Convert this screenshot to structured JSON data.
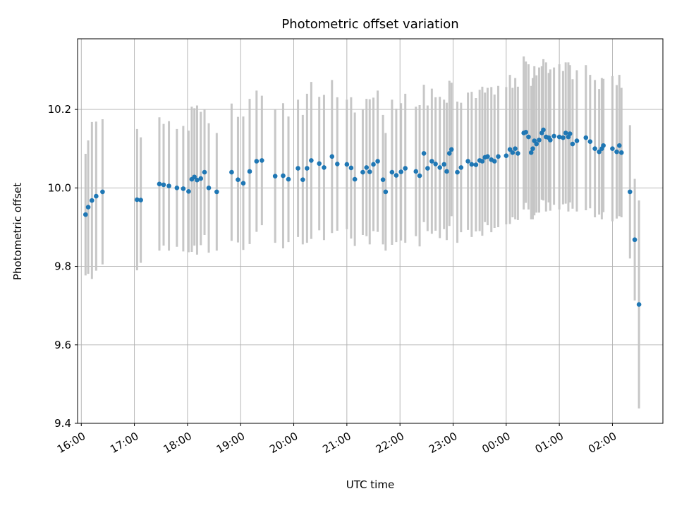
{
  "chart_data": {
    "type": "scatter",
    "title": "Photometric offset variation",
    "xlabel": "UTC time",
    "ylabel": "Photometric offset",
    "xlim": [
      15.93,
      26.95
    ],
    "ylim": [
      9.4,
      10.38
    ],
    "grid": true,
    "legend": false,
    "point_color": "#1f77b4",
    "errorbar_color": "#c4c4c4",
    "grid_color": "#b0b0b0",
    "spine_color": "#000000",
    "x_ticks": [
      {
        "value": 16,
        "label": "16:00"
      },
      {
        "value": 17,
        "label": "17:00"
      },
      {
        "value": 18,
        "label": "18:00"
      },
      {
        "value": 19,
        "label": "19:00"
      },
      {
        "value": 20,
        "label": "20:00"
      },
      {
        "value": 21,
        "label": "21:00"
      },
      {
        "value": 22,
        "label": "22:00"
      },
      {
        "value": 23,
        "label": "23:00"
      },
      {
        "value": 24,
        "label": "00:00"
      },
      {
        "value": 25,
        "label": "01:00"
      },
      {
        "value": 26,
        "label": "02:00"
      }
    ],
    "y_ticks": [
      {
        "value": 9.4,
        "label": "9.4"
      },
      {
        "value": 9.6,
        "label": "9.6"
      },
      {
        "value": 9.8,
        "label": "9.8"
      },
      {
        "value": 10.0,
        "label": "10.0"
      },
      {
        "value": 10.2,
        "label": "10.2"
      }
    ],
    "points_note": "each point is [utc_decimal_hours (24+ = next day), photometric_offset, symmetric_error]",
    "points": [
      [
        16.08,
        9.932,
        0.155
      ],
      [
        16.13,
        9.951,
        0.17
      ],
      [
        16.2,
        9.968,
        0.2
      ],
      [
        16.28,
        9.979,
        0.19
      ],
      [
        16.4,
        9.99,
        0.185
      ],
      [
        17.05,
        9.97,
        0.18
      ],
      [
        17.12,
        9.969,
        0.16
      ],
      [
        17.47,
        10.01,
        0.17
      ],
      [
        17.55,
        10.008,
        0.155
      ],
      [
        17.65,
        10.005,
        0.165
      ],
      [
        17.8,
        10.0,
        0.15
      ],
      [
        17.92,
        9.998,
        0.16
      ],
      [
        18.02,
        9.991,
        0.155
      ],
      [
        18.08,
        10.022,
        0.185
      ],
      [
        18.13,
        10.028,
        0.175
      ],
      [
        18.18,
        10.02,
        0.19
      ],
      [
        18.25,
        10.024,
        0.17
      ],
      [
        18.32,
        10.04,
        0.16
      ],
      [
        18.4,
        10.0,
        0.165
      ],
      [
        18.55,
        9.99,
        0.15
      ],
      [
        18.83,
        10.04,
        0.175
      ],
      [
        18.95,
        10.021,
        0.16
      ],
      [
        19.05,
        10.012,
        0.17
      ],
      [
        19.17,
        10.042,
        0.185
      ],
      [
        19.3,
        10.068,
        0.18
      ],
      [
        19.4,
        10.07,
        0.165
      ],
      [
        19.65,
        10.03,
        0.17
      ],
      [
        19.8,
        10.031,
        0.185
      ],
      [
        19.9,
        10.022,
        0.16
      ],
      [
        20.08,
        10.05,
        0.175
      ],
      [
        20.17,
        10.021,
        0.165
      ],
      [
        20.25,
        10.05,
        0.19
      ],
      [
        20.33,
        10.07,
        0.2
      ],
      [
        20.48,
        10.062,
        0.17
      ],
      [
        20.57,
        10.052,
        0.185
      ],
      [
        20.72,
        10.08,
        0.195
      ],
      [
        20.82,
        10.061,
        0.17
      ],
      [
        21.0,
        10.06,
        0.165
      ],
      [
        21.08,
        10.051,
        0.18
      ],
      [
        21.15,
        10.022,
        0.17
      ],
      [
        21.3,
        10.04,
        0.16
      ],
      [
        21.37,
        10.052,
        0.175
      ],
      [
        21.43,
        10.041,
        0.185
      ],
      [
        21.5,
        10.06,
        0.17
      ],
      [
        21.58,
        10.068,
        0.18
      ],
      [
        21.68,
        10.021,
        0.165
      ],
      [
        21.73,
        9.99,
        0.15
      ],
      [
        21.85,
        10.04,
        0.185
      ],
      [
        21.93,
        10.032,
        0.17
      ],
      [
        22.02,
        10.041,
        0.175
      ],
      [
        22.1,
        10.05,
        0.19
      ],
      [
        22.3,
        10.042,
        0.165
      ],
      [
        22.37,
        10.031,
        0.18
      ],
      [
        22.45,
        10.088,
        0.175
      ],
      [
        22.52,
        10.05,
        0.16
      ],
      [
        22.6,
        10.068,
        0.185
      ],
      [
        22.67,
        10.061,
        0.17
      ],
      [
        22.75,
        10.052,
        0.18
      ],
      [
        22.83,
        10.06,
        0.165
      ],
      [
        22.88,
        10.042,
        0.175
      ],
      [
        22.93,
        10.088,
        0.185
      ],
      [
        22.97,
        10.098,
        0.17
      ],
      [
        23.08,
        10.04,
        0.18
      ],
      [
        23.15,
        10.052,
        0.165
      ],
      [
        23.28,
        10.068,
        0.175
      ],
      [
        23.35,
        10.06,
        0.185
      ],
      [
        23.43,
        10.059,
        0.17
      ],
      [
        23.5,
        10.07,
        0.18
      ],
      [
        23.55,
        10.068,
        0.19
      ],
      [
        23.6,
        10.078,
        0.165
      ],
      [
        23.65,
        10.08,
        0.175
      ],
      [
        23.72,
        10.072,
        0.185
      ],
      [
        23.78,
        10.068,
        0.17
      ],
      [
        23.85,
        10.08,
        0.18
      ],
      [
        24.0,
        10.082,
        0.175
      ],
      [
        24.07,
        10.098,
        0.19
      ],
      [
        24.12,
        10.09,
        0.165
      ],
      [
        24.17,
        10.1,
        0.18
      ],
      [
        24.22,
        10.088,
        0.17
      ],
      [
        24.33,
        10.14,
        0.195
      ],
      [
        24.37,
        10.142,
        0.18
      ],
      [
        24.42,
        10.13,
        0.185
      ],
      [
        24.47,
        10.09,
        0.17
      ],
      [
        24.5,
        10.1,
        0.18
      ],
      [
        24.53,
        10.12,
        0.19
      ],
      [
        24.57,
        10.112,
        0.175
      ],
      [
        24.62,
        10.122,
        0.185
      ],
      [
        24.67,
        10.14,
        0.17
      ],
      [
        24.7,
        10.148,
        0.18
      ],
      [
        24.75,
        10.13,
        0.19
      ],
      [
        24.8,
        10.128,
        0.165
      ],
      [
        24.83,
        10.122,
        0.18
      ],
      [
        24.9,
        10.132,
        0.175
      ],
      [
        25.0,
        10.13,
        0.185
      ],
      [
        25.07,
        10.128,
        0.17
      ],
      [
        25.12,
        10.14,
        0.18
      ],
      [
        25.17,
        10.13,
        0.19
      ],
      [
        25.2,
        10.138,
        0.175
      ],
      [
        25.25,
        10.112,
        0.165
      ],
      [
        25.33,
        10.12,
        0.18
      ],
      [
        25.5,
        10.128,
        0.185
      ],
      [
        25.58,
        10.118,
        0.17
      ],
      [
        25.67,
        10.1,
        0.175
      ],
      [
        25.75,
        10.092,
        0.16
      ],
      [
        25.8,
        10.1,
        0.18
      ],
      [
        25.83,
        10.108,
        0.17
      ],
      [
        26.0,
        10.1,
        0.185
      ],
      [
        26.08,
        10.092,
        0.17
      ],
      [
        26.13,
        10.108,
        0.18
      ],
      [
        26.17,
        10.09,
        0.165
      ],
      [
        26.33,
        9.99,
        0.17
      ],
      [
        26.42,
        9.868,
        0.155
      ],
      [
        26.5,
        9.703,
        0.265
      ]
    ]
  }
}
